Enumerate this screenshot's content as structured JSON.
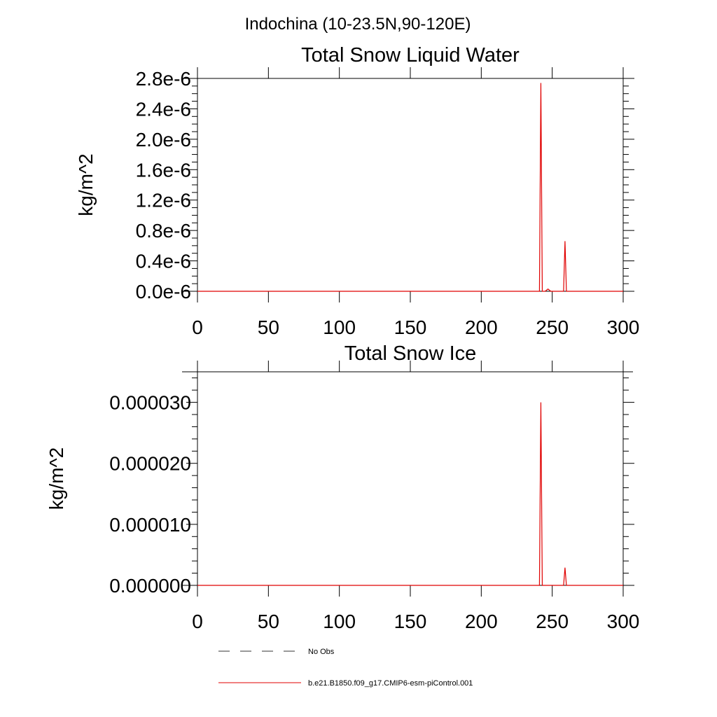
{
  "figure_title": "Indochina (10-23.5N,90-120E)",
  "colors": {
    "obs": "#1a1a1a",
    "model": "#e00000",
    "axis": "#000000"
  },
  "legend": {
    "entries": [
      {
        "label": "No Obs",
        "style": "dashed",
        "color": "#333333"
      },
      {
        "label": "b.e21.B1850.f09_g17.CMIP6-esm-piControl.001",
        "style": "solid",
        "color": "#e00000"
      }
    ]
  },
  "chart_data": [
    {
      "type": "line",
      "title": "Total Snow Liquid Water",
      "ylabel": "kg/m^2",
      "xlabel": "",
      "xlim": [
        0,
        300
      ],
      "ylim": [
        0,
        2.8e-06
      ],
      "xticks": [
        0,
        50,
        100,
        150,
        200,
        250,
        300
      ],
      "xtick_labels": [
        "0",
        "50",
        "100",
        "150",
        "200",
        "250",
        "300"
      ],
      "yticks": [
        0,
        4e-07,
        8e-07,
        1.2e-06,
        1.6e-06,
        2e-06,
        2.4e-06,
        2.8e-06
      ],
      "ytick_labels": [
        "0.0e-6",
        "0.4e-6",
        "0.8e-6",
        "1.2e-6",
        "1.6e-6",
        "2.0e-6",
        "2.4e-6",
        "2.8e-6"
      ],
      "y_minor_per_major": 4,
      "grid": false,
      "series": [
        {
          "name": "b.e21.B1850.f09_g17.CMIP6-esm-piControl.001",
          "color": "#e00000",
          "x": [
            0,
            241,
            242,
            243,
            245,
            247,
            249,
            258,
            259,
            260,
            300
          ],
          "y": [
            0,
            0,
            2.74e-06,
            0,
            0,
            3e-08,
            0,
            0,
            6.6e-07,
            0,
            0
          ]
        }
      ]
    },
    {
      "type": "line",
      "title": "Total Snow Ice",
      "ylabel": "kg/m^2",
      "xlabel": "",
      "xlim": [
        0,
        300
      ],
      "ylim": [
        0,
        3.5e-05
      ],
      "xticks": [
        0,
        50,
        100,
        150,
        200,
        250,
        300
      ],
      "xtick_labels": [
        "0",
        "50",
        "100",
        "150",
        "200",
        "250",
        "300"
      ],
      "yticks": [
        0,
        1e-05,
        2e-05,
        3e-05
      ],
      "ytick_labels": [
        "0.000000",
        "0.000010",
        "0.000020",
        "0.000030"
      ],
      "y_minor_per_major": 5,
      "grid": false,
      "series": [
        {
          "name": "b.e21.B1850.f09_g17.CMIP6-esm-piControl.001",
          "color": "#e00000",
          "x": [
            0,
            241,
            242,
            243,
            258,
            259,
            260,
            300
          ],
          "y": [
            0,
            0,
            3e-05,
            0,
            0,
            2.9e-06,
            0,
            0
          ]
        }
      ]
    }
  ]
}
